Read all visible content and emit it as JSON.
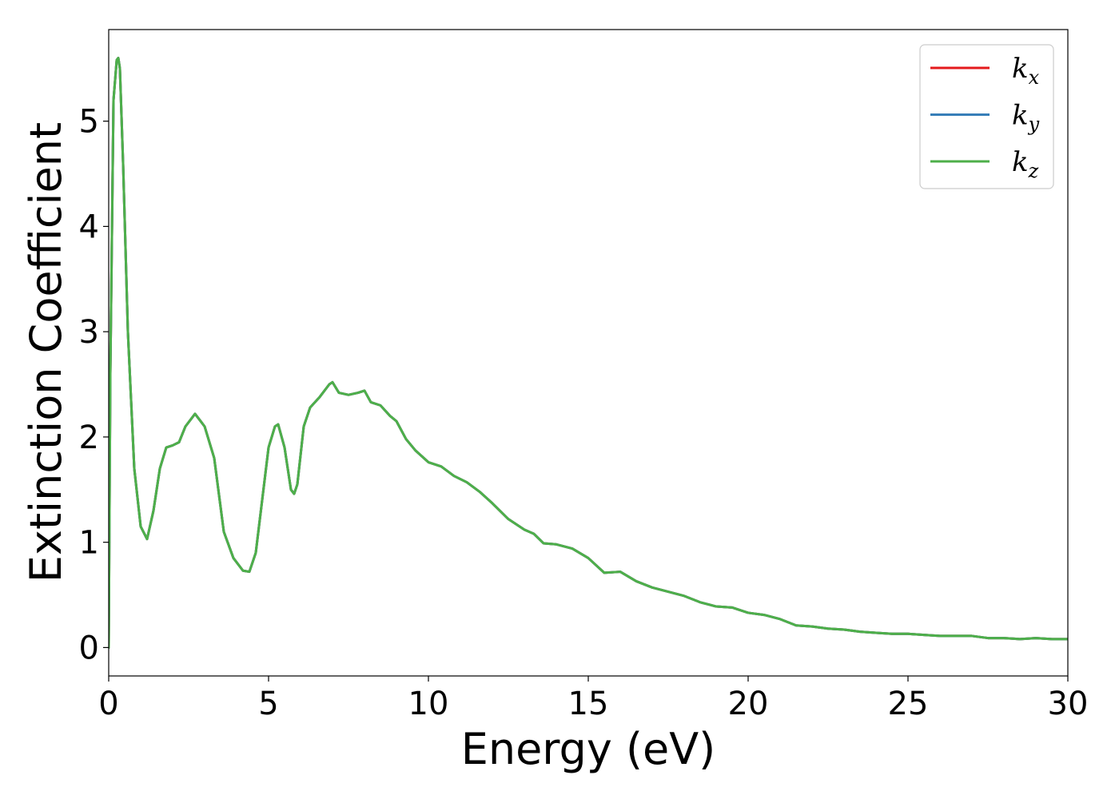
{
  "chart_data": {
    "type": "line",
    "title": "",
    "xlabel": "Energy (eV)",
    "ylabel": "Extinction Coefficient",
    "xlim": [
      0,
      30
    ],
    "ylim": [
      -0.27,
      5.87
    ],
    "xticks": [
      0,
      5,
      10,
      15,
      20,
      25,
      30
    ],
    "xtick_labels": [
      "0",
      "5",
      "10",
      "15",
      "20",
      "25",
      "30"
    ],
    "yticks": [
      0,
      1,
      2,
      3,
      4,
      5
    ],
    "ytick_labels": [
      "0",
      "1",
      "2",
      "3",
      "4",
      "5"
    ],
    "grid": false,
    "legend_position": "top-right",
    "series": [
      {
        "name": "kx",
        "legend_base": "k",
        "legend_sub": "x",
        "color": "#e41a1c",
        "x": [
          0,
          0.05,
          0.15,
          0.25,
          0.3,
          0.35,
          0.45,
          0.6,
          0.8,
          1.0,
          1.2,
          1.4,
          1.6,
          1.8,
          2.0,
          2.2,
          2.4,
          2.7,
          3.0,
          3.3,
          3.6,
          3.9,
          4.2,
          4.4,
          4.6,
          4.8,
          5.0,
          5.2,
          5.3,
          5.5,
          5.7,
          5.8,
          5.9,
          6.1,
          6.3,
          6.6,
          6.9,
          7.0,
          7.2,
          7.5,
          7.8,
          8.0,
          8.2,
          8.5,
          8.8,
          9.0,
          9.3,
          9.6,
          10.0,
          10.4,
          10.8,
          11.2,
          11.6,
          12.0,
          12.5,
          13.0,
          13.3,
          13.6,
          14.0,
          14.5,
          15.0,
          15.5,
          16.0,
          16.5,
          17.0,
          17.5,
          18.0,
          18.5,
          19.0,
          19.5,
          20.0,
          20.5,
          21.0,
          21.5,
          22.0,
          22.5,
          23.0,
          23.5,
          24.0,
          24.5,
          25.0,
          25.5,
          26.0,
          26.5,
          27.0,
          27.5,
          28.0,
          28.5,
          29.0,
          29.5,
          30.0
        ],
        "y": [
          0.0,
          2.6,
          5.2,
          5.58,
          5.6,
          5.5,
          4.6,
          3.0,
          1.7,
          1.15,
          1.03,
          1.3,
          1.7,
          1.9,
          1.92,
          1.95,
          2.1,
          2.22,
          2.1,
          1.8,
          1.1,
          0.85,
          0.73,
          0.72,
          0.9,
          1.4,
          1.9,
          2.1,
          2.12,
          1.9,
          1.5,
          1.46,
          1.55,
          2.1,
          2.28,
          2.38,
          2.5,
          2.52,
          2.42,
          2.4,
          2.42,
          2.44,
          2.33,
          2.3,
          2.2,
          2.15,
          1.98,
          1.87,
          1.76,
          1.72,
          1.63,
          1.57,
          1.48,
          1.37,
          1.22,
          1.12,
          1.08,
          0.99,
          0.98,
          0.94,
          0.85,
          0.71,
          0.72,
          0.63,
          0.57,
          0.53,
          0.49,
          0.43,
          0.39,
          0.38,
          0.33,
          0.31,
          0.27,
          0.21,
          0.2,
          0.18,
          0.17,
          0.15,
          0.14,
          0.13,
          0.13,
          0.12,
          0.11,
          0.11,
          0.11,
          0.09,
          0.09,
          0.08,
          0.09,
          0.08,
          0.08
        ]
      },
      {
        "name": "ky",
        "legend_base": "k",
        "legend_sub": "y",
        "color": "#377eb8",
        "x": [
          0,
          0.05,
          0.15,
          0.25,
          0.3,
          0.35,
          0.45,
          0.6,
          0.8,
          1.0,
          1.2,
          1.4,
          1.6,
          1.8,
          2.0,
          2.2,
          2.4,
          2.7,
          3.0,
          3.3,
          3.6,
          3.9,
          4.2,
          4.4,
          4.6,
          4.8,
          5.0,
          5.2,
          5.3,
          5.5,
          5.7,
          5.8,
          5.9,
          6.1,
          6.3,
          6.6,
          6.9,
          7.0,
          7.2,
          7.5,
          7.8,
          8.0,
          8.2,
          8.5,
          8.8,
          9.0,
          9.3,
          9.6,
          10.0,
          10.4,
          10.8,
          11.2,
          11.6,
          12.0,
          12.5,
          13.0,
          13.3,
          13.6,
          14.0,
          14.5,
          15.0,
          15.5,
          16.0,
          16.5,
          17.0,
          17.5,
          18.0,
          18.5,
          19.0,
          19.5,
          20.0,
          20.5,
          21.0,
          21.5,
          22.0,
          22.5,
          23.0,
          23.5,
          24.0,
          24.5,
          25.0,
          25.5,
          26.0,
          26.5,
          27.0,
          27.5,
          28.0,
          28.5,
          29.0,
          29.5,
          30.0
        ],
        "y": [
          0.0,
          2.6,
          5.2,
          5.58,
          5.6,
          5.5,
          4.6,
          3.0,
          1.7,
          1.15,
          1.03,
          1.3,
          1.7,
          1.9,
          1.92,
          1.95,
          2.1,
          2.22,
          2.1,
          1.8,
          1.1,
          0.85,
          0.73,
          0.72,
          0.9,
          1.4,
          1.9,
          2.1,
          2.12,
          1.9,
          1.5,
          1.46,
          1.55,
          2.1,
          2.28,
          2.38,
          2.5,
          2.52,
          2.42,
          2.4,
          2.42,
          2.44,
          2.33,
          2.3,
          2.2,
          2.15,
          1.98,
          1.87,
          1.76,
          1.72,
          1.63,
          1.57,
          1.48,
          1.37,
          1.22,
          1.12,
          1.08,
          0.99,
          0.98,
          0.94,
          0.85,
          0.71,
          0.72,
          0.63,
          0.57,
          0.53,
          0.49,
          0.43,
          0.39,
          0.38,
          0.33,
          0.31,
          0.27,
          0.21,
          0.2,
          0.18,
          0.17,
          0.15,
          0.14,
          0.13,
          0.13,
          0.12,
          0.11,
          0.11,
          0.11,
          0.09,
          0.09,
          0.08,
          0.09,
          0.08,
          0.08
        ]
      },
      {
        "name": "kz",
        "legend_base": "k",
        "legend_sub": "z",
        "color": "#4daf4a",
        "x": [
          0,
          0.05,
          0.15,
          0.25,
          0.3,
          0.35,
          0.45,
          0.6,
          0.8,
          1.0,
          1.2,
          1.4,
          1.6,
          1.8,
          2.0,
          2.2,
          2.4,
          2.7,
          3.0,
          3.3,
          3.6,
          3.9,
          4.2,
          4.4,
          4.6,
          4.8,
          5.0,
          5.2,
          5.3,
          5.5,
          5.7,
          5.8,
          5.9,
          6.1,
          6.3,
          6.6,
          6.9,
          7.0,
          7.2,
          7.5,
          7.8,
          8.0,
          8.2,
          8.5,
          8.8,
          9.0,
          9.3,
          9.6,
          10.0,
          10.4,
          10.8,
          11.2,
          11.6,
          12.0,
          12.5,
          13.0,
          13.3,
          13.6,
          14.0,
          14.5,
          15.0,
          15.5,
          16.0,
          16.5,
          17.0,
          17.5,
          18.0,
          18.5,
          19.0,
          19.5,
          20.0,
          20.5,
          21.0,
          21.5,
          22.0,
          22.5,
          23.0,
          23.5,
          24.0,
          24.5,
          25.0,
          25.5,
          26.0,
          26.5,
          27.0,
          27.5,
          28.0,
          28.5,
          29.0,
          29.5,
          30.0
        ],
        "y": [
          0.0,
          2.6,
          5.2,
          5.58,
          5.6,
          5.5,
          4.6,
          3.0,
          1.7,
          1.15,
          1.03,
          1.3,
          1.7,
          1.9,
          1.92,
          1.95,
          2.1,
          2.22,
          2.1,
          1.8,
          1.1,
          0.85,
          0.73,
          0.72,
          0.9,
          1.4,
          1.9,
          2.1,
          2.12,
          1.9,
          1.5,
          1.46,
          1.55,
          2.1,
          2.28,
          2.38,
          2.5,
          2.52,
          2.42,
          2.4,
          2.42,
          2.44,
          2.33,
          2.3,
          2.2,
          2.15,
          1.98,
          1.87,
          1.76,
          1.72,
          1.63,
          1.57,
          1.48,
          1.37,
          1.22,
          1.12,
          1.08,
          0.99,
          0.98,
          0.94,
          0.85,
          0.71,
          0.72,
          0.63,
          0.57,
          0.53,
          0.49,
          0.43,
          0.39,
          0.38,
          0.33,
          0.31,
          0.27,
          0.21,
          0.2,
          0.18,
          0.17,
          0.15,
          0.14,
          0.13,
          0.13,
          0.12,
          0.11,
          0.11,
          0.11,
          0.09,
          0.09,
          0.08,
          0.09,
          0.08,
          0.08
        ]
      }
    ]
  }
}
